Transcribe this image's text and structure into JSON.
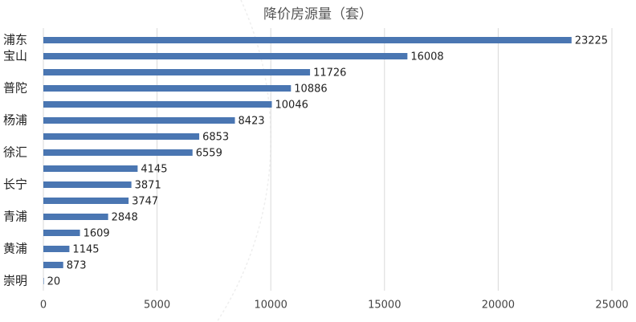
{
  "chart_data": {
    "type": "bar",
    "orientation": "horizontal",
    "title": "降价房源量（套）",
    "categories": [
      "浦东",
      "宝山",
      null,
      "普陀",
      null,
      "杨浦",
      null,
      "徐汇",
      null,
      "长宁",
      null,
      "青浦",
      null,
      "黄浦",
      null,
      "崇明"
    ],
    "values": [
      23225,
      16008,
      11726,
      10886,
      10046,
      8423,
      6853,
      6559,
      4145,
      3871,
      3747,
      2848,
      1609,
      1145,
      873,
      20
    ],
    "color": "#4a76b2",
    "xlim": [
      0,
      25000
    ],
    "xticks": [
      0,
      5000,
      10000,
      15000,
      20000,
      25000
    ],
    "grid": true
  }
}
